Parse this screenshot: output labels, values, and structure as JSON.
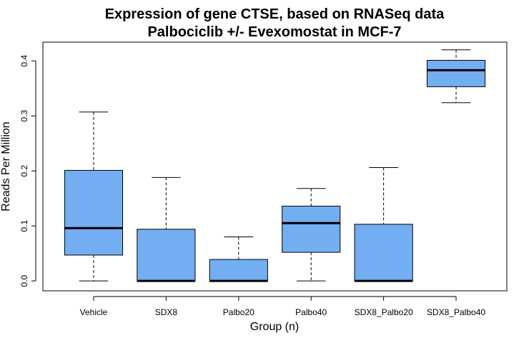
{
  "chart_data": {
    "type": "boxplot",
    "title": "Expression of gene CTSE, based on RNASeq data",
    "subtitle": "Palbociclib +/- Evexomostat in MCF-7",
    "xlabel": "Group (n)",
    "ylabel": "Reads Per Million",
    "ylim": [
      -0.018,
      0.434
    ],
    "yticks": [
      0.0,
      0.1,
      0.2,
      0.3,
      0.4
    ],
    "ytick_labels": [
      "0.0",
      "0.1",
      "0.2",
      "0.3",
      "0.4"
    ],
    "grid": false,
    "box_color": "#74AEF2",
    "categories": [
      "Vehicle",
      "SDX8",
      "Palbo20",
      "Palbo40",
      "SDX8_Palbo20",
      "SDX8_Palbo40"
    ],
    "boxes": [
      {
        "min": 0.0,
        "q1": 0.047,
        "median": 0.096,
        "q3": 0.201,
        "max": 0.307
      },
      {
        "min": 0.0,
        "q1": 0.0,
        "median": 0.0,
        "q3": 0.094,
        "max": 0.188
      },
      {
        "min": 0.0,
        "q1": 0.0,
        "median": 0.0,
        "q3": 0.039,
        "max": 0.08
      },
      {
        "min": 0.0,
        "q1": 0.052,
        "median": 0.105,
        "q3": 0.136,
        "max": 0.168
      },
      {
        "min": 0.0,
        "q1": 0.0,
        "median": 0.0,
        "q3": 0.103,
        "max": 0.206
      },
      {
        "min": 0.324,
        "q1": 0.353,
        "median": 0.383,
        "q3": 0.401,
        "max": 0.42
      }
    ]
  }
}
